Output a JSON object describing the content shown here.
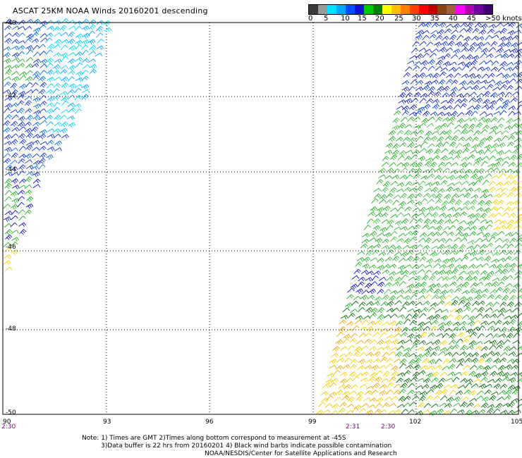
{
  "title": "ASCAT 25KM NOAA Winds 20160201 descending",
  "colorbar": {
    "colors": [
      "#3a3a3a",
      "#9a9a9a",
      "#00e0ff",
      "#00a8ff",
      "#0050ff",
      "#1010d0",
      "#00c800",
      "#008000",
      "#ffff00",
      "#ffc000",
      "#ff8000",
      "#ff4000",
      "#ff0000",
      "#c00000",
      "#8b4513",
      "#a06040",
      "#ff00ff",
      "#b000b0",
      "#7000a0",
      "#400070"
    ],
    "labels": [
      "0",
      "5",
      "10",
      "15",
      "20",
      "25",
      "30",
      "35",
      "40",
      "45",
      ">50 knots"
    ]
  },
  "lat_labels": [
    "-40",
    "-42",
    "-44",
    "-46",
    "-48",
    "-50"
  ],
  "lon_labels": [
    "90",
    "93",
    "96",
    "99",
    "102",
    "105"
  ],
  "time_labels": {
    "left": "2:30",
    "t1": "2:31",
    "t2": "2:30"
  },
  "notes": {
    "line1": "Note: 1) Times are GMT 2)Times along bottom correspond to measurement at -45S",
    "line2": "3)Data buffer is 22 hrs from 20160201 4) Black wind barbs indicate possible contamination",
    "line3": "NOAA/NESDIS/Center for Satellite Applications and Research"
  }
}
